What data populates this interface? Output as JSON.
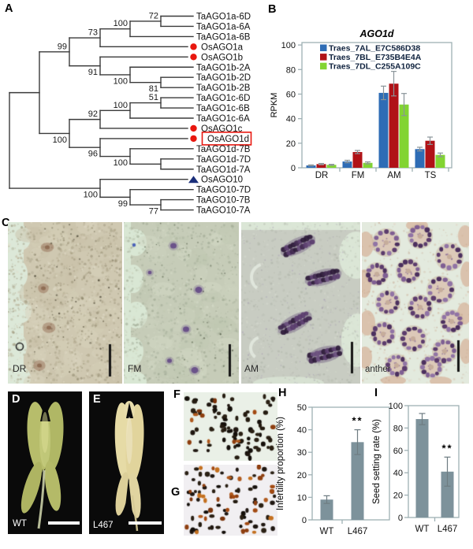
{
  "panels": {
    "a": "A",
    "b": "B",
    "c": "C",
    "d": "D",
    "e": "E",
    "f": "F",
    "g": "G",
    "h": "H",
    "i": "I"
  },
  "colors": {
    "tree_line": "#3a3a3a",
    "red_marker": "#e8170f",
    "blue_marker": "#1b2f7a",
    "highlight_box": "#e8170f",
    "axis": "#9fb0b4",
    "error_bar": "#8a9499",
    "legend_text": "#10233f",
    "tick_text": "#111111"
  },
  "tree": {
    "root": {
      "d": 0,
      "children": [
        {
          "d": 1,
          "children": [
            {
              "d": 2,
              "support": "99",
              "label_pos": "above",
              "children": [
                {
                  "d": 3,
                  "support": "73",
                  "label_pos": "above",
                  "children": [
                    {
                      "d": 4,
                      "support": "100",
                      "label_pos": "above",
                      "children": [
                        {
                          "d": 5,
                          "support": "72",
                          "label_pos": "above",
                          "children": [
                            {
                              "leaf": "TaAGO1a-6D"
                            },
                            {
                              "leaf": "TaAGO1a-6A"
                            }
                          ]
                        },
                        {
                          "leaf": "TaAGO1a-6B"
                        }
                      ]
                    },
                    {
                      "leaf": "OsAGO1a",
                      "marker": "red-circle"
                    }
                  ]
                },
                {
                  "d": 3,
                  "support": "91",
                  "label_pos": "below",
                  "children": [
                    {
                      "leaf": "OsAGO1b",
                      "marker": "red-circle"
                    },
                    {
                      "d": 4,
                      "support": "100",
                      "label_pos": "below",
                      "children": [
                        {
                          "leaf": "TaAGO1b-2A"
                        },
                        {
                          "d": 5,
                          "support": "81",
                          "label_pos": "below",
                          "children": [
                            {
                              "leaf": "TaAGO1b-2D"
                            },
                            {
                              "leaf": "TaAGO1b-2B"
                            }
                          ]
                        }
                      ]
                    }
                  ]
                }
              ]
            },
            {
              "d": 2,
              "support": "100",
              "label_pos": "below",
              "children": [
                {
                  "d": 3,
                  "support": "92",
                  "label_pos": "above",
                  "children": [
                    {
                      "d": 4,
                      "support": "100",
                      "label_pos": "above",
                      "children": [
                        {
                          "d": 5,
                          "support": "51",
                          "label_pos": "above",
                          "children": [
                            {
                              "leaf": "TaAGO1c-6D"
                            },
                            {
                              "leaf": "TaAGO1c-6B"
                            }
                          ]
                        },
                        {
                          "leaf": "TaAGO1c-6A"
                        }
                      ]
                    },
                    {
                      "leaf": "OsAGO1c",
                      "marker": "red-circle"
                    }
                  ]
                },
                {
                  "d": 3,
                  "support": "96",
                  "label_pos": "below",
                  "children": [
                    {
                      "leaf": "OsAGO1d",
                      "marker": "red-circle",
                      "boxed": true
                    },
                    {
                      "d": 4,
                      "support": "100",
                      "label_pos": "below",
                      "children": [
                        {
                          "leaf": "TaAGO1d-7B"
                        },
                        {
                          "d": 5,
                          "children": [
                            {
                              "leaf": "TaAGO1d-7D"
                            },
                            {
                              "leaf": "TaAGO1d-7A"
                            }
                          ]
                        }
                      ]
                    }
                  ]
                }
              ]
            }
          ]
        },
        {
          "d": 3,
          "support": "100",
          "label_pos": "below",
          "children": [
            {
              "leaf": "OsAGO10",
              "marker": "blue-triangle"
            },
            {
              "d": 4,
              "support": "99",
              "label_pos": "below",
              "children": [
                {
                  "leaf": "TaAGO10-7D"
                },
                {
                  "d": 5,
                  "support": "77",
                  "label_pos": "below",
                  "children": [
                    {
                      "leaf": "TaAGO10-7B"
                    },
                    {
                      "leaf": "TaAGO10-7A"
                    }
                  ]
                }
              ]
            }
          ]
        }
      ]
    }
  },
  "panel_c": {
    "captions": [
      "DR",
      "FM",
      "AM",
      "anther"
    ]
  },
  "photo_panels": {
    "wt_label": "WT",
    "mutant_label": "L467"
  },
  "chart_data": [
    {
      "id": "B",
      "type": "bar",
      "title": "AGO1d",
      "ylabel": "RPKM",
      "categories": [
        "DR",
        "FM",
        "AM",
        "TS"
      ],
      "ylim": [
        0,
        102
      ],
      "yticks": [
        0,
        20,
        40,
        60,
        80,
        100
      ],
      "legend_position": "top-left-inside",
      "grid": false,
      "series": [
        {
          "name": "Traes_7AL_E7C586D38",
          "color": "#2e6cb5",
          "values": [
            1.9,
            5.1,
            61,
            15.2
          ],
          "errors": [
            0.4,
            1,
            5.5,
            1.5
          ]
        },
        {
          "name": "Traes_7BL_E735B4E4A",
          "color": "#b01217",
          "values": [
            3,
            12.8,
            68.5,
            22
          ],
          "errors": [
            0.5,
            1.3,
            10,
            3
          ]
        },
        {
          "name": "Traes_7DL_C255A109C",
          "color": "#82d432",
          "values": [
            2.4,
            4,
            51.5,
            10.5
          ],
          "errors": [
            0.4,
            0.8,
            9,
            1.5
          ]
        }
      ]
    },
    {
      "id": "H",
      "type": "bar",
      "ylabel": "Infertility proportion (%)",
      "categories": [
        "WT",
        "L467"
      ],
      "values": [
        9,
        34.5
      ],
      "errors": [
        1.7,
        5.5
      ],
      "significance": [
        "",
        "**"
      ],
      "ylim": [
        0,
        50
      ],
      "yticks": [
        0,
        10,
        20,
        30,
        40,
        50
      ],
      "bar_color": "#7d929b"
    },
    {
      "id": "I",
      "type": "bar",
      "ylabel": "Seed setting rate (%)",
      "categories": [
        "WT",
        "L467"
      ],
      "values": [
        88,
        41
      ],
      "errors": [
        5,
        13
      ],
      "significance": [
        "",
        "**"
      ],
      "ylim": [
        0,
        100
      ],
      "yticks": [
        0,
        20,
        40,
        60,
        80,
        100
      ],
      "bar_color": "#7d929b"
    }
  ]
}
